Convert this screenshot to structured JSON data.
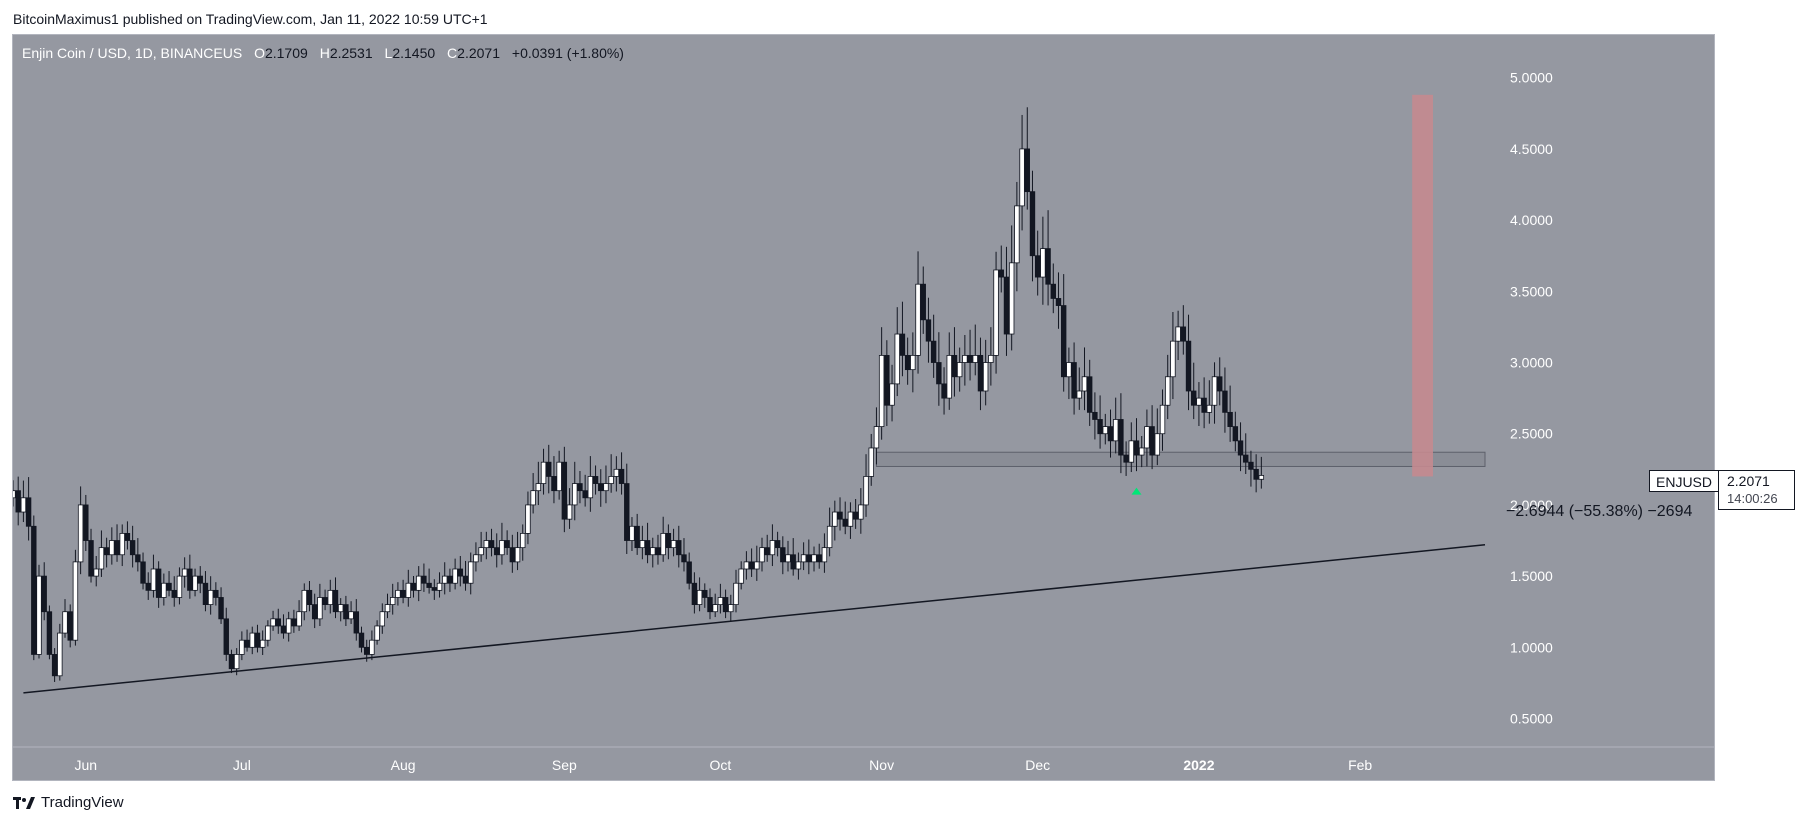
{
  "header": {
    "publisher": "BitcoinMaximus1 published on TradingView.com, Jan 11, 2022 10:59 UTC+1"
  },
  "legend": {
    "symbol": "Enjin Coin / USD, 1D, BINANCEUS",
    "o_label": "O",
    "o": "2.1709",
    "h_label": "H",
    "h": "2.2531",
    "l_label": "L",
    "l": "2.1450",
    "c_label": "C",
    "c": "2.2071",
    "change": "+0.0391 (+1.80%)"
  },
  "currency_badge": "USD",
  "last_price": {
    "ticker": "ENJUSD",
    "price": "2.2071",
    "countdown": "14:00:26"
  },
  "measurement_label": "−2.6944 (−55.38%) −2694",
  "footer": {
    "brand": "TradingView"
  },
  "colors": {
    "chart_bg": "#9598a1",
    "candle_up": "#ffffff",
    "candle_down": "#131722",
    "support_zone": "#8a8d96",
    "red_box": "#c48a8f",
    "marker": "#00e676",
    "trendline": "#131722"
  },
  "chart_data": {
    "type": "candlestick",
    "title": "Enjin Coin / USD, 1D, BINANCEUS",
    "x_tick_labels": [
      "Jun",
      "Jul",
      "Aug",
      "Sep",
      "Oct",
      "Nov",
      "Dec",
      "2022",
      "Feb"
    ],
    "y_tick_labels": [
      "0.5000",
      "1.0000",
      "1.5000",
      "2.0000",
      "2.5000",
      "3.0000",
      "3.5000",
      "4.0000",
      "4.5000",
      "5.0000"
    ],
    "y_range": [
      0.3,
      5.3
    ],
    "x_range": [
      "2021-05-18",
      "2022-02-25"
    ],
    "grid": false,
    "candles_closes": [
      2.1,
      1.95,
      2.05,
      1.85,
      0.95,
      1.5,
      1.25,
      0.95,
      0.8,
      1.1,
      1.25,
      1.05,
      1.6,
      2.0,
      1.75,
      1.5,
      1.55,
      1.7,
      1.65,
      1.75,
      1.65,
      1.8,
      1.75,
      1.65,
      1.6,
      1.45,
      1.4,
      1.55,
      1.35,
      1.45,
      1.4,
      1.35,
      1.5,
      1.55,
      1.4,
      1.5,
      1.45,
      1.3,
      1.4,
      1.35,
      1.2,
      0.95,
      0.85,
      0.95,
      1.05,
      1.0,
      1.1,
      1.0,
      1.05,
      1.15,
      1.2,
      1.15,
      1.1,
      1.2,
      1.15,
      1.25,
      1.4,
      1.3,
      1.2,
      1.35,
      1.3,
      1.4,
      1.25,
      1.3,
      1.2,
      1.25,
      1.1,
      1.0,
      0.95,
      1.05,
      1.15,
      1.25,
      1.3,
      1.35,
      1.4,
      1.35,
      1.45,
      1.4,
      1.5,
      1.45,
      1.42,
      1.4,
      1.45,
      1.5,
      1.45,
      1.55,
      1.5,
      1.45,
      1.6,
      1.65,
      1.7,
      1.75,
      1.7,
      1.65,
      1.75,
      1.7,
      1.6,
      1.7,
      1.8,
      2.0,
      2.1,
      2.15,
      2.3,
      2.2,
      2.1,
      2.3,
      1.9,
      2.0,
      2.15,
      2.1,
      2.05,
      2.2,
      2.15,
      2.1,
      2.15,
      2.2,
      2.25,
      2.15,
      1.75,
      1.85,
      1.7,
      1.75,
      1.65,
      1.7,
      1.65,
      1.8,
      1.7,
      1.75,
      1.65,
      1.6,
      1.45,
      1.3,
      1.4,
      1.35,
      1.25,
      1.3,
      1.35,
      1.25,
      1.3,
      1.45,
      1.55,
      1.6,
      1.55,
      1.6,
      1.7,
      1.65,
      1.75,
      1.7,
      1.6,
      1.65,
      1.55,
      1.6,
      1.65,
      1.6,
      1.65,
      1.6,
      1.7,
      1.85,
      1.95,
      1.9,
      1.85,
      1.95,
      1.9,
      2.0,
      2.2,
      2.4,
      2.55,
      3.05,
      2.7,
      2.85,
      3.2,
      3.05,
      2.95,
      3.05,
      3.55,
      3.3,
      3.15,
      3.0,
      2.85,
      2.75,
      3.05,
      2.9,
      3.0,
      3.05,
      3.0,
      3.05,
      2.8,
      3.0,
      3.05,
      3.65,
      3.6,
      3.2,
      3.7,
      4.1,
      4.5,
      4.2,
      3.75,
      3.6,
      3.8,
      3.55,
      3.45,
      3.4,
      2.9,
      3.0,
      2.75,
      2.8,
      2.9,
      2.65,
      2.6,
      2.5,
      2.55,
      2.45,
      2.6,
      2.35,
      2.3,
      2.45,
      2.35,
      2.4,
      2.55,
      2.35,
      2.5,
      2.7,
      2.9,
      3.15,
      3.25,
      3.15,
      2.8,
      2.7,
      2.75,
      2.65,
      2.7,
      2.9,
      2.8,
      2.65,
      2.55,
      2.45,
      2.35,
      2.3,
      2.25,
      2.18,
      2.2071
    ],
    "support_zone": {
      "from": 2.27,
      "to": 2.37,
      "start": "2021-10-31",
      "end": "2022-02-25"
    },
    "red_box": {
      "from": 2.2,
      "to": 4.88,
      "start": "2022-02-11",
      "end": "2022-02-15"
    },
    "trendline": {
      "start": [
        "2021-05-20",
        0.68
      ],
      "end": [
        "2022-02-25",
        1.72
      ]
    },
    "marker": {
      "date": "2021-12-20",
      "price": 2.1
    },
    "last_price": 2.2071
  }
}
